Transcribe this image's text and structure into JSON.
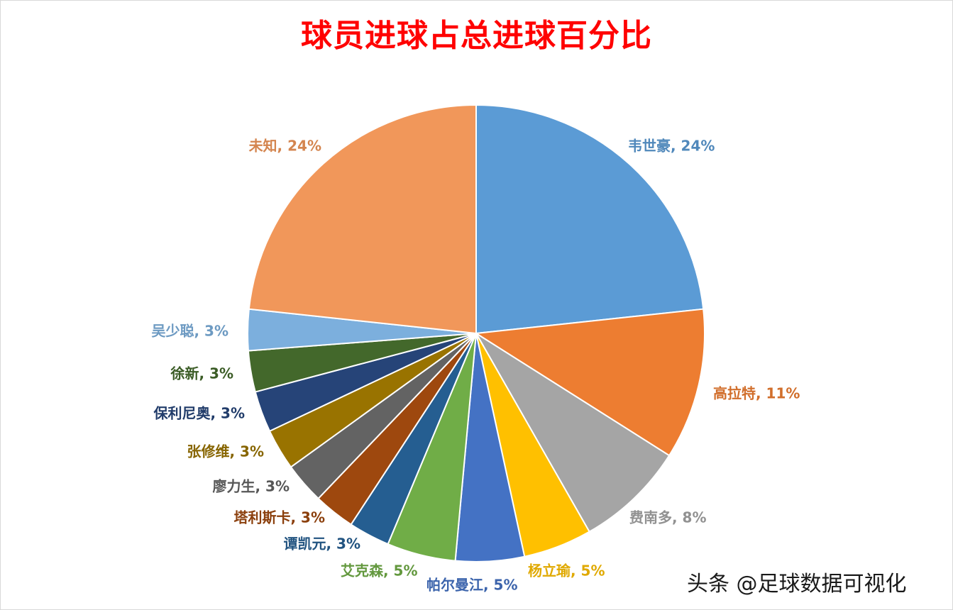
{
  "chart_data": {
    "type": "pie",
    "title": "球员进球占总进球百分比",
    "slices": [
      {
        "name": "韦世豪",
        "value": 24,
        "label": "韦世豪, 24%",
        "color": "#5b9bd5"
      },
      {
        "name": "高拉特",
        "value": 11,
        "label": "高拉特, 11%",
        "color": "#ed7d31"
      },
      {
        "name": "费南多",
        "value": 8,
        "label": "费南多, 8%",
        "color": "#a5a5a5"
      },
      {
        "name": "杨立瑜",
        "value": 5,
        "label": "杨立瑜, 5%",
        "color": "#ffc000"
      },
      {
        "name": "帕尔曼江",
        "value": 5,
        "label": "帕尔曼江, 5%",
        "color": "#4472c4"
      },
      {
        "name": "艾克森",
        "value": 5,
        "label": "艾克森, 5%",
        "color": "#70ad47"
      },
      {
        "name": "谭凯元",
        "value": 3,
        "label": "谭凯元, 3%",
        "color": "#255e91"
      },
      {
        "name": "塔利斯卡",
        "value": 3,
        "label": "塔利斯卡, 3%",
        "color": "#9e480e"
      },
      {
        "name": "廖力生",
        "value": 3,
        "label": "廖力生, 3%",
        "color": "#636363"
      },
      {
        "name": "张修维",
        "value": 3,
        "label": "张修维, 3%",
        "color": "#997300"
      },
      {
        "name": "保利尼奥",
        "value": 3,
        "label": "保利尼奥, 3%",
        "color": "#264478"
      },
      {
        "name": "徐新",
        "value": 3,
        "label": "徐新, 3%",
        "color": "#43682b"
      },
      {
        "name": "吴少聪",
        "value": 3,
        "label": "吴少聪, 3%",
        "color": "#7cafdd"
      },
      {
        "name": "未知",
        "value": 24,
        "label": "未知, 24%",
        "color": "#f1975a"
      }
    ]
  },
  "watermark": "头条 @足球数据可视化"
}
